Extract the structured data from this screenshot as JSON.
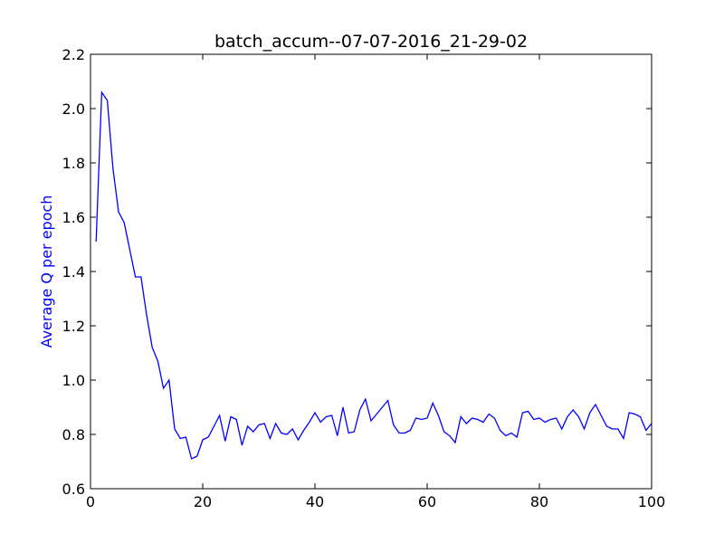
{
  "chart_data": {
    "type": "line",
    "title": "batch_accum--07-07-2016_21-29-02",
    "xlabel": "",
    "ylabel": "Average Q per epoch",
    "ylabel_color": "#0000ff",
    "line_color": "#0000ff",
    "xlim": [
      0,
      100
    ],
    "ylim": [
      0.6,
      2.2
    ],
    "xticks": [
      0,
      20,
      40,
      60,
      80,
      100
    ],
    "yticks": [
      0.6,
      0.8,
      1.0,
      1.2,
      1.4,
      1.6,
      1.8,
      2.0,
      2.2
    ],
    "grid": false,
    "series": [
      {
        "x": [
          1,
          2,
          3,
          4,
          5,
          6,
          7,
          8,
          9,
          10,
          11,
          12,
          13,
          14,
          15,
          16,
          17,
          18,
          19,
          20,
          21,
          22,
          23,
          24,
          25,
          26,
          27,
          28,
          29,
          30,
          31,
          32,
          33,
          34,
          35,
          36,
          37,
          38,
          39,
          40,
          41,
          42,
          43,
          44,
          45,
          46,
          47,
          48,
          49,
          50,
          51,
          52,
          53,
          54,
          55,
          56,
          57,
          58,
          59,
          60,
          61,
          62,
          63,
          64,
          65,
          66,
          67,
          68,
          69,
          70,
          71,
          72,
          73,
          74,
          75,
          76,
          77,
          78,
          79,
          80,
          81,
          82,
          83,
          84,
          85,
          86,
          87,
          88,
          89,
          90,
          91,
          92,
          93,
          94,
          95,
          96,
          97,
          98,
          99,
          100
        ],
        "y": [
          1.51,
          2.06,
          2.03,
          1.78,
          1.62,
          1.58,
          1.48,
          1.38,
          1.38,
          1.24,
          1.12,
          1.07,
          0.97,
          1.0,
          0.82,
          0.785,
          0.79,
          0.71,
          0.72,
          0.78,
          0.79,
          0.83,
          0.87,
          0.775,
          0.865,
          0.855,
          0.76,
          0.83,
          0.81,
          0.835,
          0.84,
          0.785,
          0.84,
          0.805,
          0.8,
          0.82,
          0.78,
          0.815,
          0.845,
          0.88,
          0.845,
          0.865,
          0.87,
          0.795,
          0.9,
          0.805,
          0.81,
          0.89,
          0.93,
          0.85,
          0.875,
          0.9,
          0.925,
          0.835,
          0.805,
          0.805,
          0.815,
          0.86,
          0.855,
          0.86,
          0.915,
          0.87,
          0.81,
          0.795,
          0.77,
          0.865,
          0.84,
          0.86,
          0.855,
          0.845,
          0.875,
          0.86,
          0.815,
          0.795,
          0.805,
          0.79,
          0.88,
          0.885,
          0.855,
          0.86,
          0.845,
          0.855,
          0.86,
          0.82,
          0.865,
          0.89,
          0.865,
          0.82,
          0.88,
          0.91,
          0.87,
          0.83,
          0.82,
          0.82,
          0.785,
          0.88,
          0.875,
          0.865,
          0.815,
          0.84
        ]
      }
    ]
  }
}
